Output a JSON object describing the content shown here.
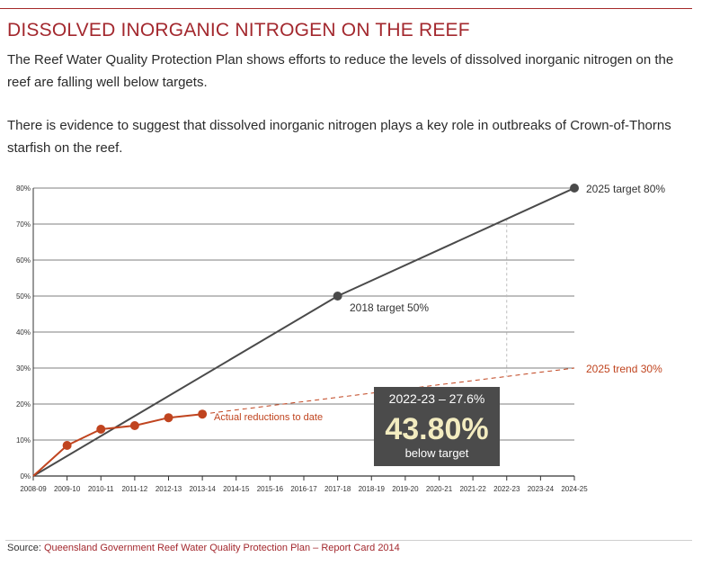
{
  "header": {
    "title": "DISSOLVED INORGANIC NITROGEN ON THE REEF",
    "paragraph1": "The Reef Water Quality Protection Plan shows efforts to reduce the levels of dissolved inorganic nitrogen on the reef are falling well below targets.",
    "paragraph2": "There is evidence to suggest that dissolved inorganic nitrogen plays a key role in outbreaks of Crown-of-Thorns starfish on the reef."
  },
  "footer": {
    "source_label": "Source:",
    "source_text": "Queensland Government Reef Water Quality Protection Plan – Report Card 2014"
  },
  "colors": {
    "accent": "#a3282e",
    "target_line": "#4a4a4a",
    "actual_line": "#c0441f",
    "trend_line": "#c0441f",
    "callout_bg": "#4b4b4b",
    "callout_value": "#f3ecc0"
  },
  "chart_data": {
    "type": "line",
    "categories": [
      "2008-09",
      "2009-10",
      "2010-11",
      "2011-12",
      "2012-13",
      "2013-14",
      "2014-15",
      "2015-16",
      "2016-17",
      "2017-18",
      "2018-19",
      "2019-20",
      "2020-21",
      "2021-22",
      "2022-23",
      "2023-24",
      "2024-25"
    ],
    "ylim": [
      0,
      80
    ],
    "yticks": [
      "0%",
      "10%",
      "20%",
      "30%",
      "40%",
      "50%",
      "60%",
      "70%",
      "80%"
    ],
    "grid": true,
    "series": [
      {
        "key": "target",
        "values": [
          [
            0,
            0
          ],
          [
            9,
            50
          ],
          [
            16,
            80
          ]
        ]
      },
      {
        "key": "actual",
        "values": [
          [
            1,
            8.5
          ],
          [
            2,
            13
          ],
          [
            3,
            14
          ],
          [
            4,
            16.2
          ],
          [
            5,
            17.2
          ]
        ]
      },
      {
        "key": "trend",
        "values": [
          [
            5,
            17.2
          ],
          [
            16,
            30
          ]
        ]
      }
    ],
    "annotations": {
      "target_2025": "2025 target 80%",
      "target_2018": "2018 target 50%",
      "trend_2025": "2025 trend 30%",
      "actual": "Actual reductions to date"
    },
    "reference_year_index": 14,
    "callout": {
      "line1": "2022-23 – 27.6%",
      "value": "43.80%",
      "line3": "below target"
    }
  }
}
